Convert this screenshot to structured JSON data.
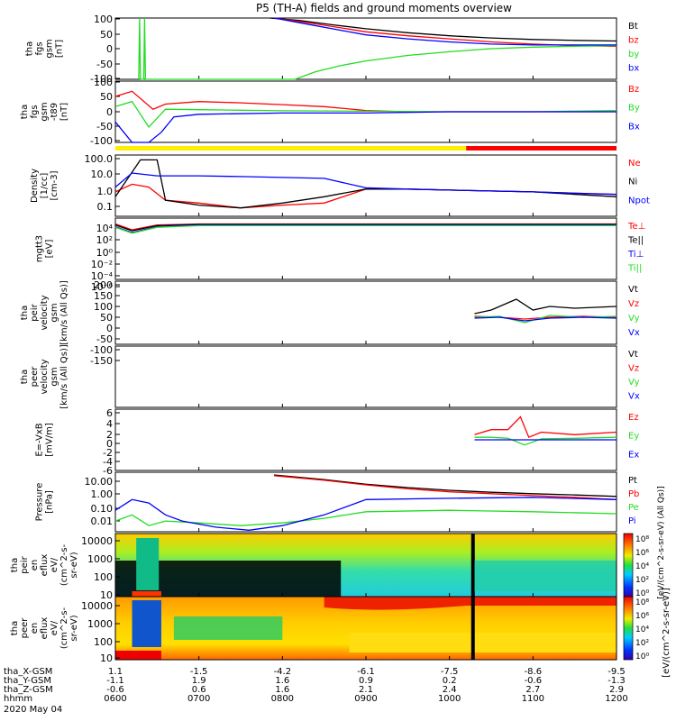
{
  "title": "P5 (TH-A) fields and ground moments overview",
  "colors": {
    "black": "#000000",
    "red": "#ff0000",
    "green": "#22dd22",
    "blue": "#0000ff",
    "quality_yellow": "#ffee00",
    "quality_red": "#ff0000"
  },
  "panels": [
    {
      "id": "fgs",
      "ylabel": [
        "tha",
        "fgs",
        "gsm",
        "[nT]"
      ],
      "ticks": [
        "100",
        "50",
        "0",
        "-50",
        "-100"
      ],
      "legend": [
        {
          "text": "Bt",
          "color": "black"
        },
        {
          "text": "bz",
          "color": "red"
        },
        {
          "text": "by",
          "color": "green"
        },
        {
          "text": "bx",
          "color": "blue"
        }
      ]
    },
    {
      "id": "fgs_rb",
      "ylabel": [
        "tha",
        "fgs",
        "gsm",
        "-t89",
        "[nT]"
      ],
      "ticks": [
        "100",
        "50",
        "0",
        "-50",
        "-100"
      ],
      "legend": [
        {
          "text": "Bz",
          "color": "red"
        },
        {
          "text": "By",
          "color": "green"
        },
        {
          "text": "Bx",
          "color": "blue"
        }
      ]
    },
    {
      "id": "density",
      "ylabel": [
        "Density",
        "[1/cc]",
        "[cm-3]"
      ],
      "ticks": [
        "100.0",
        "10.0",
        "1.0",
        "0.1"
      ],
      "legend": [
        {
          "text": "Ne",
          "color": "red"
        },
        {
          "text": "Ni",
          "color": "black"
        },
        {
          "text": "Npot",
          "color": "blue"
        }
      ]
    },
    {
      "id": "temp",
      "ylabel": [
        "mgtt3",
        "[eV]"
      ],
      "ticks": [
        "10⁴",
        "10²",
        "10⁰",
        "10⁻²",
        "10⁻⁴",
        "10⁻⁶"
      ],
      "legend": [
        {
          "text": "Te⊥",
          "color": "red"
        },
        {
          "text": "Te||",
          "color": "black"
        },
        {
          "text": "Ti⊥",
          "color": "blue"
        },
        {
          "text": "Ti||",
          "color": "green"
        }
      ]
    },
    {
      "id": "peir_vel",
      "ylabel": [
        "tha",
        "peir",
        "velocity",
        "gsm",
        "[km/s (All Qs)]"
      ],
      "ticks": [
        "200",
        "150",
        "100",
        "50",
        "0",
        "-50",
        "-100",
        "-150"
      ],
      "legend": [
        {
          "text": "Vt",
          "color": "black"
        },
        {
          "text": "Vz",
          "color": "red"
        },
        {
          "text": "Vy",
          "color": "green"
        },
        {
          "text": "Vx",
          "color": "blue"
        }
      ]
    },
    {
      "id": "peer_vel",
      "ylabel": [
        "tha",
        "peer",
        "velocity",
        "gsm",
        "[km/s (All Qs)]"
      ],
      "ticks": [],
      "legend": [
        {
          "text": "Vt",
          "color": "black"
        },
        {
          "text": "Vz",
          "color": "red"
        },
        {
          "text": "Vy",
          "color": "green"
        },
        {
          "text": "Vx",
          "color": "blue"
        }
      ]
    },
    {
      "id": "efield",
      "ylabel": [
        "E=-VxB",
        "[mV/m]"
      ],
      "ticks": [
        "6",
        "4",
        "2",
        "0",
        "-2",
        "-4",
        "-6"
      ],
      "legend": [
        {
          "text": "Ez",
          "color": "red"
        },
        {
          "text": "Ey",
          "color": "green"
        },
        {
          "text": "Ex",
          "color": "blue"
        }
      ]
    },
    {
      "id": "pressure",
      "ylabel": [
        "Pressure",
        "[nPa]"
      ],
      "ticks": [
        "10.00",
        "1.00",
        "0.10",
        "0.01"
      ],
      "legend": [
        {
          "text": "Pt",
          "color": "black"
        },
        {
          "text": "Pb",
          "color": "red"
        },
        {
          "text": "Pe",
          "color": "green"
        },
        {
          "text": "Pi",
          "color": "blue"
        }
      ]
    },
    {
      "id": "peir_spec",
      "ylabel": [
        "tha",
        "peir",
        "en",
        "eflux",
        "eV/",
        "(cm^2-s-",
        "sr-eV)"
      ],
      "ticks": [
        "10000",
        "1000",
        "100",
        "10"
      ],
      "legend": []
    },
    {
      "id": "peer_spec",
      "ylabel": [
        "tha",
        "peer",
        "en",
        "eflux",
        "eV/",
        "(cm^2-s-",
        "sr-eV)"
      ],
      "ticks": [
        "10000",
        "1000",
        "100",
        "10"
      ],
      "legend": []
    }
  ],
  "colorbar": {
    "label": "[eV/(cm^2-s-sr-eV)]",
    "label_top": "[eV/(cm^2-s-sr-eV) (All Qs)]",
    "ticks_top": [
      "10⁸",
      "10⁶",
      "10⁴",
      "10²",
      "10⁰"
    ],
    "ticks_bottom": [
      "10⁸",
      "10⁶",
      "10⁴",
      "10²",
      "10⁰"
    ]
  },
  "x_axis": {
    "row_labels": [
      "tha_X-GSM",
      "tha_Y-GSM",
      "tha_Z-GSM",
      "hhmm",
      "2020 May 04"
    ],
    "columns": [
      [
        "1.1",
        "-1.1",
        "-0.6",
        "0600"
      ],
      [
        "-1.5",
        "1.9",
        "0.6",
        "0700"
      ],
      [
        "-4.2",
        "1.6",
        "1.6",
        "0800"
      ],
      [
        "-6.1",
        "0.9",
        "2.1",
        "0900"
      ],
      [
        "-7.5",
        "0.2",
        "2.4",
        "1000"
      ],
      [
        "-8.6",
        "-0.6",
        "2.7",
        "1100"
      ],
      [
        "-9.5",
        "-1.3",
        "2.9",
        "1200"
      ]
    ]
  },
  "chart_data": [
    {
      "type": "line",
      "title": "P5 (TH-A) fields and ground moments overview",
      "panel": "fgs",
      "x_hours": [
        6.0,
        7.0,
        8.0,
        9.0,
        10.0,
        11.0,
        12.0
      ],
      "ylim": [
        -100,
        100
      ],
      "series": [
        {
          "name": "Bt",
          "color": "black",
          "x": [
            7.85,
            8.2,
            8.6,
            9.0,
            9.5,
            10.0,
            10.5,
            11.0,
            11.5,
            12.0
          ],
          "y": [
            100,
            92,
            78,
            65,
            52,
            42,
            35,
            30,
            27,
            25
          ]
        },
        {
          "name": "bz",
          "color": "red",
          "x": [
            7.9,
            8.3,
            8.7,
            9.0,
            9.5,
            10.0,
            10.5,
            11.0,
            11.5,
            12.0
          ],
          "y": [
            100,
            85,
            68,
            55,
            42,
            32,
            22,
            15,
            10,
            8
          ]
        },
        {
          "name": "by",
          "color": "green",
          "x": [
            6.28,
            6.29,
            6.3,
            6.34,
            6.35,
            6.36,
            8.15,
            8.4,
            8.7,
            9.0,
            9.5,
            10.0,
            10.5,
            11.0,
            11.5,
            12.0
          ],
          "y": [
            -100,
            100,
            -100,
            -100,
            100,
            -100,
            -100,
            -75,
            -55,
            -40,
            -22,
            -10,
            0,
            5,
            8,
            10
          ]
        },
        {
          "name": "bx",
          "color": "blue",
          "x": [
            7.9,
            8.3,
            8.7,
            9.0,
            9.5,
            10.0,
            10.5,
            11.0,
            11.5,
            12.0
          ],
          "y": [
            100,
            80,
            60,
            45,
            32,
            22,
            15,
            12,
            12,
            12
          ]
        }
      ]
    },
    {
      "type": "line",
      "panel": "fgs_rb",
      "ylim": [
        -120,
        120
      ],
      "series": [
        {
          "name": "Bz",
          "color": "red",
          "x": [
            6.0,
            6.2,
            6.45,
            6.6,
            7.0,
            7.5,
            8.0,
            8.5,
            9.0,
            9.5,
            10.0,
            11.0,
            12.0
          ],
          "y": [
            60,
            80,
            10,
            30,
            40,
            35,
            28,
            20,
            5,
            0,
            0,
            0,
            0
          ]
        },
        {
          "name": "By",
          "color": "green",
          "x": [
            6.0,
            6.2,
            6.4,
            6.6,
            7.0,
            7.5,
            8.0,
            9.0,
            10.0,
            11.0,
            12.0
          ],
          "y": [
            20,
            40,
            -60,
            10,
            8,
            6,
            4,
            2,
            0,
            0,
            5
          ]
        },
        {
          "name": "Bx",
          "color": "blue",
          "x": [
            6.0,
            6.1,
            6.2,
            6.4,
            6.55,
            6.7,
            7.0,
            8.0,
            9.0,
            10.0,
            11.0,
            12.0
          ],
          "y": [
            -40,
            -80,
            -120,
            -120,
            -80,
            -20,
            -10,
            -5,
            -5,
            0,
            0,
            0
          ]
        }
      ]
    },
    {
      "type": "line",
      "panel": "density",
      "y_scale": "log",
      "ylim": [
        0.03,
        200
      ],
      "series": [
        {
          "name": "Ne",
          "color": "red",
          "x": [
            6.0,
            6.2,
            6.4,
            6.6,
            7.0,
            7.5,
            8.0,
            8.5,
            9.0,
            9.5,
            10.0,
            11.0,
            12.0
          ],
          "y": [
            1,
            3,
            2,
            0.3,
            0.2,
            0.1,
            0.15,
            0.2,
            1.5,
            1.5,
            1.3,
            1,
            0.7
          ]
        },
        {
          "name": "Ni",
          "color": "black",
          "x": [
            6.0,
            6.3,
            6.5,
            6.6,
            7.0,
            7.5,
            8.0,
            8.5,
            9.0,
            9.5,
            10.0,
            11.0,
            12.0
          ],
          "y": [
            0.5,
            100,
            100,
            0.3,
            0.15,
            0.1,
            0.2,
            0.5,
            1.5,
            1.5,
            1.3,
            1,
            0.5
          ]
        },
        {
          "name": "Npot",
          "color": "blue",
          "x": [
            6.0,
            6.2,
            6.5,
            7.0,
            7.5,
            8.0,
            8.5,
            9.0,
            9.5,
            10.0,
            11.0,
            12.0
          ],
          "y": [
            2,
            15,
            10,
            10,
            9,
            8,
            7,
            1.8,
            1.5,
            1.3,
            1,
            0.7
          ]
        }
      ]
    },
    {
      "type": "line",
      "panel": "temp",
      "y_scale": "log",
      "ylim": [
        1e-06,
        30000
      ],
      "series": [
        {
          "name": "Te⊥",
          "color": "red",
          "x": [
            6.0,
            6.2,
            6.5,
            7.0,
            8.0,
            9.0,
            10.0,
            11.0,
            12.0
          ],
          "y": [
            3000,
            300,
            2000,
            3000,
            3000,
            3000,
            3000,
            3000,
            3000
          ]
        },
        {
          "name": "Te||",
          "color": "black",
          "x": [
            6.0,
            6.2,
            6.5,
            7.0,
            8.0,
            9.0,
            10.0,
            11.0,
            12.0
          ],
          "y": [
            2000,
            200,
            1500,
            2500,
            2500,
            2500,
            2500,
            2500,
            2500
          ]
        },
        {
          "name": "Ti⊥",
          "color": "blue",
          "x": [
            6.0,
            6.2,
            6.5,
            7.0,
            8.0,
            9.0,
            10.0,
            11.0,
            12.0
          ],
          "y": [
            1000,
            100,
            1000,
            2000,
            2000,
            2000,
            2000,
            2000,
            2000
          ]
        },
        {
          "name": "Ti||",
          "color": "green",
          "x": [
            6.0,
            6.2,
            6.5,
            7.0,
            8.0,
            9.0,
            10.0,
            11.0,
            12.0
          ],
          "y": [
            800,
            80,
            800,
            1500,
            1500,
            1500,
            1500,
            1500,
            1500
          ]
        }
      ]
    },
    {
      "type": "line",
      "panel": "peir_vel",
      "ylim": [
        -150,
        200
      ],
      "series": [
        {
          "name": "Vt",
          "color": "black",
          "x": [
            10.3,
            10.5,
            10.8,
            11.0,
            11.2,
            11.5,
            12.0
          ],
          "y": [
            20,
            40,
            100,
            40,
            60,
            50,
            60
          ]
        },
        {
          "name": "Vz",
          "color": "red",
          "x": [
            10.3,
            10.6,
            10.9,
            11.2,
            11.6,
            12.0
          ],
          "y": [
            5,
            0,
            -10,
            0,
            5,
            0
          ]
        },
        {
          "name": "Vy",
          "color": "green",
          "x": [
            10.3,
            10.6,
            10.9,
            11.2,
            11.6,
            12.0
          ],
          "y": [
            0,
            5,
            -30,
            10,
            0,
            5
          ]
        },
        {
          "name": "Vx",
          "color": "blue",
          "x": [
            10.3,
            10.6,
            10.9,
            11.2,
            11.6,
            12.0
          ],
          "y": [
            -5,
            0,
            -20,
            -5,
            0,
            -5
          ]
        }
      ]
    },
    {
      "type": "line",
      "panel": "peer_vel",
      "series": []
    },
    {
      "type": "line",
      "panel": "efield",
      "ylim": [
        -6,
        6
      ],
      "series": [
        {
          "name": "Ez",
          "color": "red",
          "x": [
            10.3,
            10.5,
            10.7,
            10.85,
            10.95,
            11.1,
            11.5,
            12.0
          ],
          "y": [
            1,
            2,
            2,
            4.5,
            0.5,
            1.5,
            1,
            1.5
          ]
        },
        {
          "name": "Ey",
          "color": "green",
          "x": [
            10.3,
            10.5,
            10.7,
            10.9,
            11.1,
            11.5,
            12.0
          ],
          "y": [
            0.5,
            0.5,
            0.3,
            -1,
            0.2,
            0.3,
            0.5
          ]
        },
        {
          "name": "Ex",
          "color": "blue",
          "x": [
            10.3,
            11.0,
            12.0
          ],
          "y": [
            0,
            0,
            0
          ]
        }
      ]
    },
    {
      "type": "line",
      "panel": "pressure",
      "y_scale": "log",
      "ylim": [
        0.004,
        30
      ],
      "series": [
        {
          "name": "Pt",
          "color": "black",
          "x": [
            7.9,
            8.5,
            9.0,
            9.5,
            10.0,
            10.5,
            11.0,
            11.5,
            12.0
          ],
          "y": [
            20,
            10,
            5,
            3,
            2,
            1.5,
            1.2,
            1,
            0.8
          ]
        },
        {
          "name": "Pb",
          "color": "red",
          "x": [
            7.9,
            8.5,
            9.0,
            9.5,
            10.0,
            10.5,
            11.0,
            11.5,
            12.0
          ],
          "y": [
            18,
            9,
            4.5,
            2.5,
            1.6,
            1.2,
            0.9,
            0.7,
            0.5
          ]
        },
        {
          "name": "Pe",
          "color": "green",
          "x": [
            6.0,
            6.2,
            6.4,
            6.6,
            7.0,
            7.5,
            8.0,
            8.5,
            9.0,
            10.0,
            11.0,
            12.0
          ],
          "y": [
            0.02,
            0.05,
            0.01,
            0.02,
            0.015,
            0.01,
            0.015,
            0.03,
            0.08,
            0.1,
            0.08,
            0.06
          ]
        },
        {
          "name": "Pi",
          "color": "blue",
          "x": [
            6.0,
            6.2,
            6.4,
            6.6,
            6.8,
            7.2,
            7.6,
            8.0,
            8.5,
            9.0,
            10.0,
            11.0,
            12.0
          ],
          "y": [
            0.1,
            0.5,
            0.3,
            0.05,
            0.02,
            0.008,
            0.005,
            0.01,
            0.05,
            0.5,
            0.6,
            0.7,
            0.5
          ]
        }
      ]
    },
    {
      "type": "heatmap",
      "panel": "peir_spec",
      "y_scale": "log",
      "ylim": [
        10,
        20000
      ]
    },
    {
      "type": "heatmap",
      "panel": "peer_spec",
      "y_scale": "log",
      "ylim": [
        10,
        20000
      ]
    }
  ]
}
